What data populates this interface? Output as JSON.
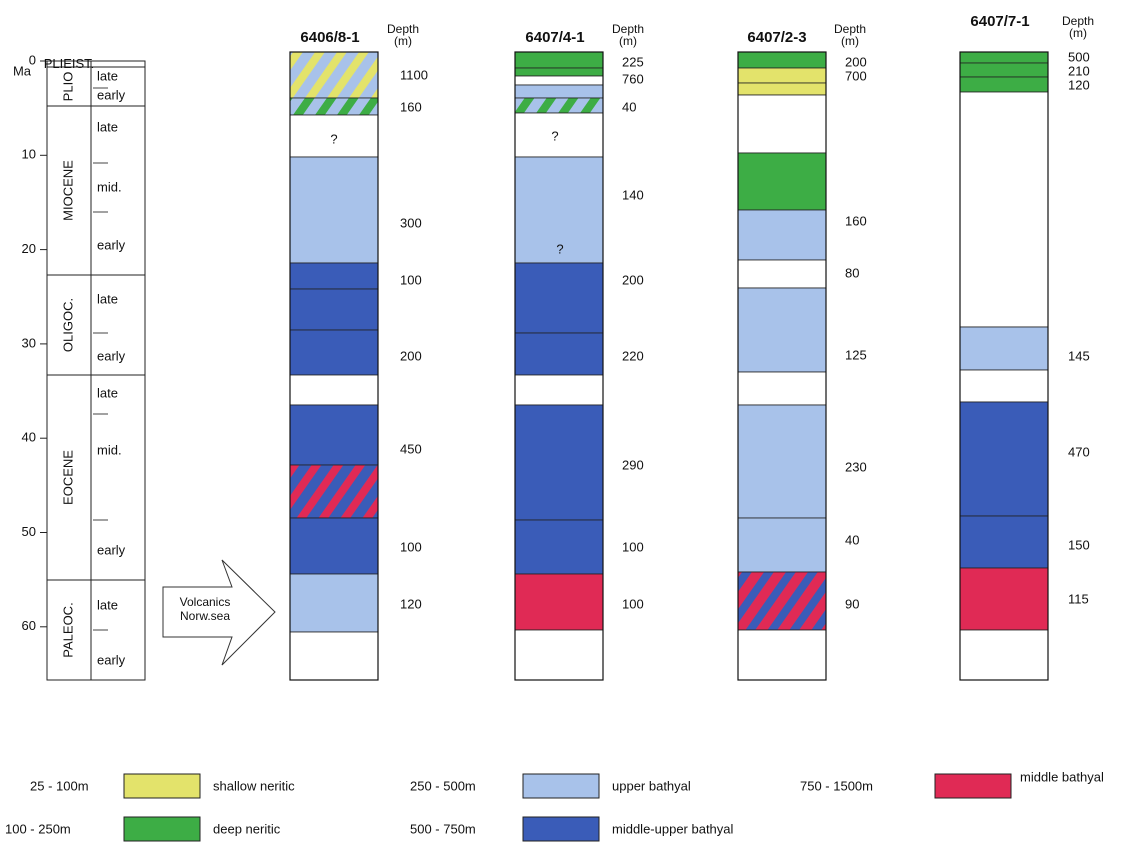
{
  "time_scale": {
    "unit": "Ma",
    "ticks": [
      0,
      10,
      20,
      30,
      40,
      50,
      60
    ],
    "epochs": [
      {
        "name": "PLIEIST.",
        "stages": []
      },
      {
        "name": "PLIO",
        "stages": [
          "late",
          "early"
        ]
      },
      {
        "name": "MIOCENE",
        "stages": [
          "late",
          "mid.",
          "early"
        ]
      },
      {
        "name": "OLIGOC.",
        "stages": [
          "late",
          "early"
        ]
      },
      {
        "name": "EOCENE",
        "stages": [
          "late",
          "mid.",
          "early"
        ]
      },
      {
        "name": "PALEOC.",
        "stages": [
          "late",
          "early"
        ]
      }
    ]
  },
  "annotation": [
    "Volcanics",
    "Norw.sea"
  ],
  "wells": [
    {
      "name": "6406/8-1",
      "depth_header": [
        "Depth",
        "(m)"
      ],
      "depths": [
        1100,
        160,
        300,
        100,
        200,
        450,
        100,
        120
      ],
      "unknown": [
        "?"
      ]
    },
    {
      "name": "6407/4-1",
      "depth_header": [
        "Depth",
        "(m)"
      ],
      "depths": [
        225,
        760,
        40,
        140,
        200,
        220,
        290,
        100,
        100
      ],
      "unknown": [
        "?",
        "?"
      ]
    },
    {
      "name": "6407/2-3",
      "depth_header": [
        "Depth",
        "(m)"
      ],
      "depths": [
        200,
        700,
        160,
        80,
        125,
        230,
        40,
        90
      ]
    },
    {
      "name": "6407/7-1",
      "depth_header": [
        "Depth",
        "(m)"
      ],
      "depths": [
        500,
        210,
        120,
        145,
        470,
        150,
        115
      ]
    }
  ],
  "legend": [
    {
      "range": "25 - 100m",
      "label": "shallow neritic",
      "color": "#e3e36b"
    },
    {
      "range": "100 - 250m",
      "label": "deep neritic",
      "color": "#3dad45"
    },
    {
      "range": "250 - 500m",
      "label": "upper bathyal",
      "color": "#a8c2ea"
    },
    {
      "range": "500 - 750m",
      "label": "middle-upper bathyal",
      "color": "#3a5cb8"
    },
    {
      "range": "750 - 1500m",
      "label": "middle bathyal",
      "color": "#e02a55"
    }
  ]
}
